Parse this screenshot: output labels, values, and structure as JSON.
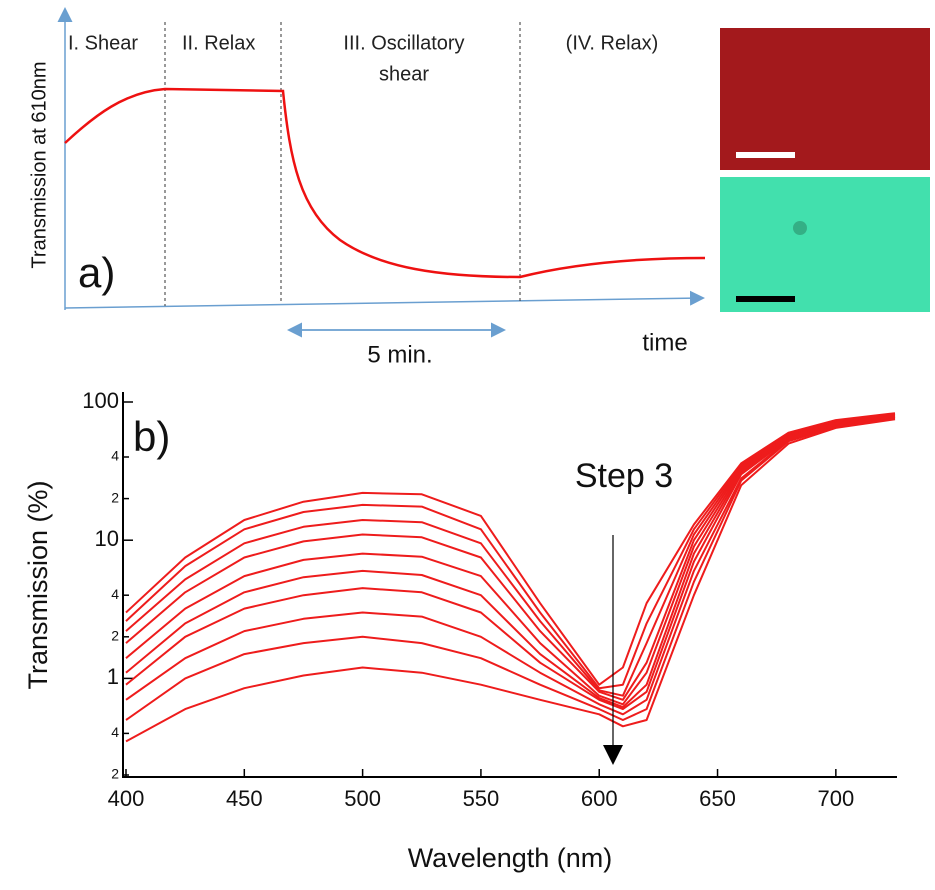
{
  "panel_a": {
    "label": "a)",
    "y_axis_label": "Transmission at 610nm",
    "x_axis_label": "time",
    "phases": [
      "I. Shear",
      "II. Relax",
      "III. Oscillatory",
      "shear",
      "(IV. Relax)"
    ],
    "duration": "5 min."
  },
  "chart_data": {
    "type": "line",
    "label": "b)",
    "annotation": "Step 3",
    "x_label": "Wavelength (nm)",
    "y_label": "Transmission (%)",
    "log_y": true,
    "color": "#ee1c1c",
    "xlim": [
      400,
      725
    ],
    "xticks": [
      400,
      450,
      500,
      550,
      600,
      650,
      700
    ],
    "ylim": [
      0.2,
      100
    ],
    "yticks": [
      {
        "value": 0.2,
        "label": "2"
      },
      {
        "value": 0.4,
        "label": "4"
      },
      1,
      2,
      4,
      10,
      {
        "value": 20,
        "label": "2"
      },
      {
        "value": 40,
        "label": "4"
      },
      100
    ],
    "x": [
      400,
      425,
      450,
      475,
      500,
      525,
      550,
      575,
      600,
      610,
      620,
      640,
      660,
      680,
      700,
      725
    ],
    "series": [
      {
        "values": [
          0.35,
          0.6,
          0.85,
          1.05,
          1.2,
          1.1,
          0.9,
          0.7,
          0.55,
          0.45,
          0.5,
          4,
          25,
          50,
          65,
          75
        ]
      },
      {
        "values": [
          0.5,
          1.0,
          1.5,
          1.8,
          2.0,
          1.8,
          1.4,
          0.9,
          0.6,
          0.5,
          0.6,
          5,
          27,
          52,
          66,
          76
        ]
      },
      {
        "values": [
          0.7,
          1.4,
          2.2,
          2.7,
          3.0,
          2.8,
          2.0,
          1.1,
          0.65,
          0.55,
          0.7,
          6,
          28,
          53,
          67,
          77
        ]
      },
      {
        "values": [
          0.9,
          2.0,
          3.2,
          4.0,
          4.5,
          4.2,
          3.0,
          1.3,
          0.7,
          0.6,
          0.8,
          7,
          30,
          54,
          68,
          78
        ]
      },
      {
        "values": [
          1.1,
          2.5,
          4.2,
          5.4,
          6.0,
          5.6,
          4.0,
          1.5,
          0.72,
          0.62,
          0.9,
          8,
          31,
          55,
          69,
          78
        ]
      },
      {
        "values": [
          1.4,
          3.2,
          5.5,
          7.2,
          8.0,
          7.6,
          5.5,
          1.8,
          0.75,
          0.65,
          1.1,
          9,
          32,
          56,
          70,
          79
        ]
      },
      {
        "values": [
          1.8,
          4.2,
          7.5,
          9.8,
          11,
          10.5,
          7.5,
          2.2,
          0.8,
          0.7,
          1.3,
          10,
          33,
          57,
          71,
          80
        ]
      },
      {
        "values": [
          2.2,
          5.2,
          9.5,
          12.5,
          14,
          13.5,
          9.5,
          2.6,
          0.82,
          0.75,
          1.8,
          11,
          34,
          58,
          72,
          81
        ]
      },
      {
        "values": [
          2.6,
          6.5,
          12,
          16,
          18,
          17.5,
          12,
          3.0,
          0.85,
          0.9,
          2.5,
          12,
          35,
          59,
          73,
          82
        ]
      },
      {
        "values": [
          3.0,
          7.5,
          14,
          19,
          22,
          21.5,
          15,
          3.5,
          0.9,
          1.2,
          3.5,
          13,
          36,
          60,
          74,
          83
        ]
      }
    ]
  }
}
